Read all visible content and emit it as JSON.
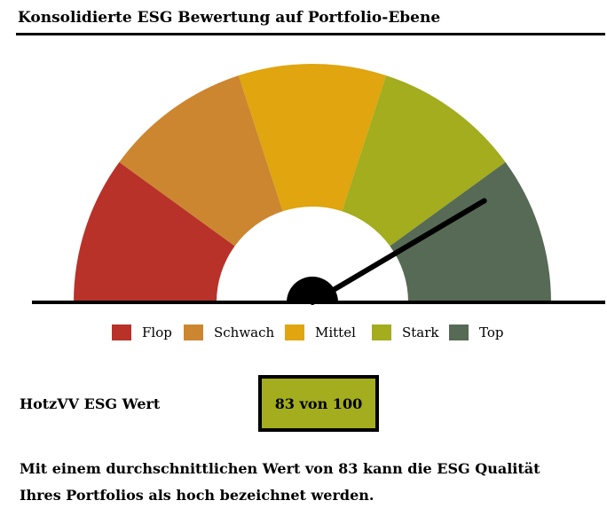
{
  "title": "Konsolidierte ESG Bewertung auf Portfolio-Ebene",
  "chart_data": {
    "type": "gauge",
    "min": 0,
    "max": 100,
    "value": 83,
    "segments": [
      {
        "name": "Flop",
        "from": 0,
        "to": 20,
        "color": "#b8322a"
      },
      {
        "name": "Schwach",
        "from": 20,
        "to": 40,
        "color": "#cc8630"
      },
      {
        "name": "Mittel",
        "from": 40,
        "to": 60,
        "color": "#e0a50f"
      },
      {
        "name": "Stark",
        "from": 60,
        "to": 80,
        "color": "#a3ad1d"
      },
      {
        "name": "Top",
        "from": 80,
        "to": 100,
        "color": "#566a55"
      }
    ],
    "legend_position": "bottom"
  },
  "score": {
    "label": "HotzVV ESG Wert",
    "value_text": "83 von 100",
    "box_color": "#a3ad1d"
  },
  "summary_line1": "Mit einem durchschnittlichen Wert von 83 kann die ESG Qualität",
  "summary_line2": "Ihres Portfolios als hoch bezeichnet werden."
}
